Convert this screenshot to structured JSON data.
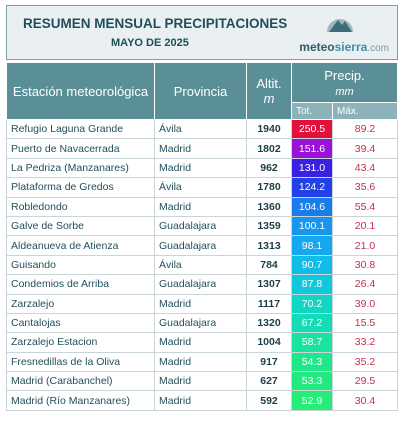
{
  "header": {
    "title": "RESUMEN MENSUAL PRECIPITACIONES",
    "subtitle": "MAYO DE 2025",
    "logo": [
      "meteo",
      "sierra",
      ".com"
    ]
  },
  "table": {
    "headers": {
      "station": "Estación meteorológica",
      "province": "Provincia",
      "altitude": "Altit.",
      "altitude_unit": "m",
      "precip": "Precip.",
      "precip_unit": "mm",
      "total": "Tot.",
      "max": "Máx."
    },
    "rows": [
      [
        "Refugio Laguna Grande",
        "Ávila",
        "1940",
        "250.5",
        "89.2"
      ],
      [
        "Puerto de Navacerrada",
        "Madrid",
        "1802",
        "151.6",
        "39.4"
      ],
      [
        "La Pedriza (Manzanares)",
        "Madrid",
        "962",
        "131.0",
        "43.4"
      ],
      [
        "Plataforma de Gredos",
        "Ávila",
        "1780",
        "124.2",
        "35.6"
      ],
      [
        "Robledondo",
        "Madrid",
        "1360",
        "104.6",
        "55.4"
      ],
      [
        "Galve de Sorbe",
        "Guadalajara",
        "1359",
        "100.1",
        "20.1"
      ],
      [
        "Aldeanueva de Atienza",
        "Guadalajara",
        "1313",
        "98.1",
        "21.0"
      ],
      [
        "Guisando",
        "Ávila",
        "784",
        "90.7",
        "30.8"
      ],
      [
        "Condemios de Arriba",
        "Guadalajara",
        "1307",
        "87.8",
        "26.4"
      ],
      [
        "Zarzalejo",
        "Madrid",
        "1117",
        "70.2",
        "39.0"
      ],
      [
        "Cantalojas",
        "Guadalajara",
        "1320",
        "67.2",
        "15.5"
      ],
      [
        "Zarzalejo Estacion",
        "Madrid",
        "1004",
        "58.7",
        "33.2"
      ],
      [
        "Fresnedillas de la Oliva",
        "Madrid",
        "917",
        "54.3",
        "35.2"
      ],
      [
        "Madrid (Carabanchel)",
        "Madrid",
        "627",
        "53.3",
        "29.5"
      ],
      [
        "Madrid (Río Manzanares)",
        "Madrid",
        "592",
        "52.9",
        "30.4"
      ]
    ],
    "total_colors": [
      "#e2103c",
      "#9a12d6",
      "#3a20e0",
      "#2240e8",
      "#1a7ce8",
      "#1896ec",
      "#16a8ee",
      "#12bce8",
      "#10c8dc",
      "#10d6c4",
      "#14dcb6",
      "#18e4a0",
      "#20e88a",
      "#22ea80",
      "#26ec78"
    ]
  }
}
